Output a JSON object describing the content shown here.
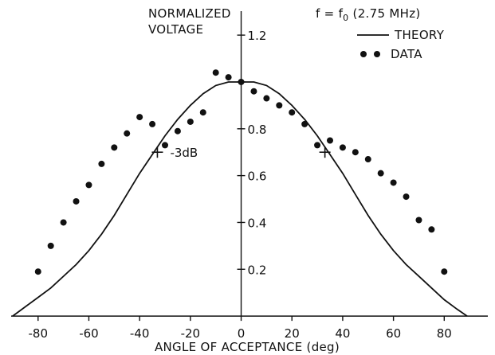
{
  "chart_data": {
    "type": "scatter",
    "ylabel_lines": [
      "NORMALIZED",
      "VOLTAGE"
    ],
    "xlabel": "ANGLE OF ACCEPTANCE (deg)",
    "annotation": {
      "text": "f = f",
      "subscript": "0",
      "suffix": " (2.75 MHz)"
    },
    "legend": {
      "placement": "top-right",
      "entries": [
        {
          "label": "THEORY",
          "style": "line"
        },
        {
          "label": "DATA",
          "style": "dots"
        }
      ]
    },
    "xlim": [
      -95,
      100
    ],
    "ylim": [
      -0.02,
      1.35
    ],
    "x_ticks": [
      -80,
      -60,
      -40,
      -20,
      0,
      20,
      40,
      60,
      80
    ],
    "x_tick_labels": [
      "-80",
      "-60",
      "-40",
      "-20",
      "0",
      "20",
      "40",
      "60",
      "80"
    ],
    "y_ticks": [
      0.2,
      0.4,
      0.6,
      0.8,
      1.0,
      1.2
    ],
    "y_tick_labels": [
      "0.2",
      "0.4",
      "0.6",
      "0.8",
      "",
      "1.2"
    ],
    "series": [
      {
        "name": "THEORY",
        "kind": "line",
        "x": [
          -90,
          -85,
          -80,
          -75,
          -70,
          -65,
          -60,
          -55,
          -50,
          -45,
          -40,
          -35,
          -30,
          -25,
          -20,
          -15,
          -10,
          -5,
          0,
          5,
          10,
          15,
          20,
          25,
          30,
          35,
          40,
          45,
          50,
          55,
          60,
          65,
          70,
          75,
          80,
          85,
          89
        ],
        "y": [
          0.0,
          0.04,
          0.08,
          0.12,
          0.17,
          0.22,
          0.28,
          0.35,
          0.43,
          0.52,
          0.61,
          0.69,
          0.77,
          0.84,
          0.9,
          0.95,
          0.985,
          1.0,
          1.0,
          1.0,
          0.985,
          0.95,
          0.9,
          0.84,
          0.77,
          0.69,
          0.61,
          0.52,
          0.43,
          0.35,
          0.28,
          0.22,
          0.17,
          0.12,
          0.07,
          0.03,
          0.0
        ]
      },
      {
        "name": "DATA",
        "kind": "scatter",
        "x": [
          -80,
          -75,
          -70,
          -65,
          -60,
          -55,
          -50,
          -45,
          -40,
          -35,
          -30,
          -25,
          -20,
          -15,
          -10,
          -5,
          0,
          5,
          10,
          15,
          20,
          25,
          30,
          35,
          40,
          45,
          50,
          55,
          60,
          65,
          70,
          75,
          80
        ],
        "y": [
          0.19,
          0.3,
          0.4,
          0.49,
          0.56,
          0.65,
          0.72,
          0.78,
          0.85,
          0.82,
          0.73,
          0.79,
          0.83,
          0.87,
          1.04,
          1.02,
          1.0,
          0.96,
          0.93,
          0.9,
          0.87,
          0.82,
          0.73,
          0.75,
          0.72,
          0.7,
          0.67,
          0.61,
          0.57,
          0.51,
          0.41,
          0.37,
          0.19
        ]
      }
    ],
    "markers": [
      {
        "x": -33,
        "y": 0.7,
        "label": "-3dB"
      },
      {
        "x": 33,
        "y": 0.7,
        "label": ""
      }
    ]
  }
}
